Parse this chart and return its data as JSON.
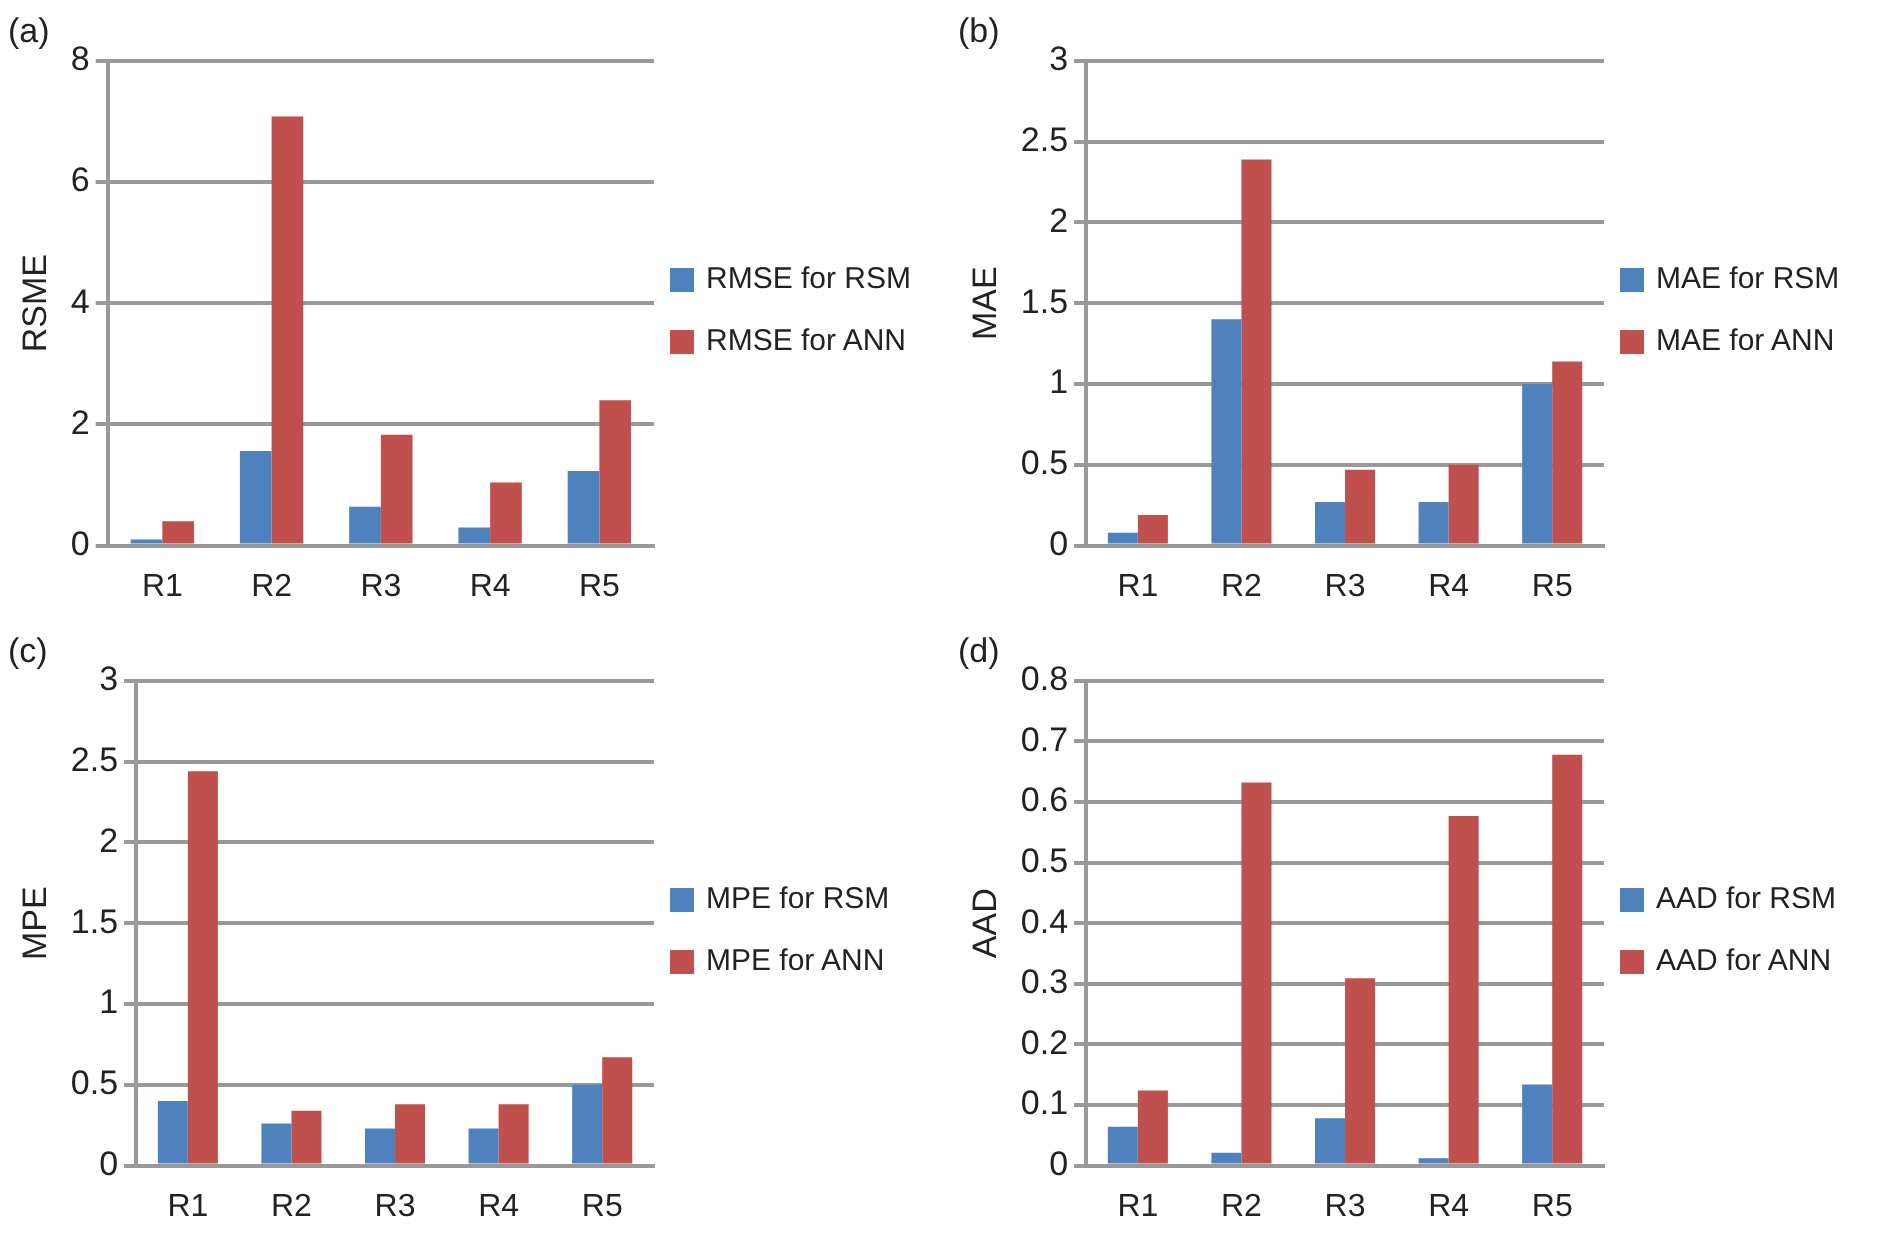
{
  "chart_data": [
    {
      "type": "bar",
      "title": "(a)",
      "ylabel": "RSME",
      "categories": [
        "R1",
        "R2",
        "R3",
        "R4",
        "R5"
      ],
      "series": [
        {
          "name": "RMSE for RSM",
          "color": "#4f81bd",
          "values": [
            0.1,
            1.56,
            0.64,
            0.3,
            1.23
          ]
        },
        {
          "name": "RMSE for ANN",
          "color": "#c0504d",
          "values": [
            0.4,
            7.08,
            1.83,
            1.04,
            2.4
          ]
        }
      ],
      "ylim": [
        0,
        8
      ],
      "yticks": [
        0,
        2,
        4,
        6,
        8
      ],
      "grid": "y",
      "legend": "right"
    },
    {
      "type": "bar",
      "title": "(b)",
      "ylabel": "MAE",
      "categories": [
        "R1",
        "R2",
        "R3",
        "R4",
        "R5"
      ],
      "series": [
        {
          "name": "MAE for RSM",
          "color": "#4f81bd",
          "values": [
            0.08,
            1.4,
            0.27,
            0.27,
            1.0
          ]
        },
        {
          "name": "MAE for ANN",
          "color": "#c0504d",
          "values": [
            0.19,
            2.39,
            0.47,
            0.5,
            1.14
          ]
        }
      ],
      "ylim": [
        0,
        3
      ],
      "yticks": [
        0,
        0.5,
        1,
        1.5,
        2,
        2.5,
        3
      ],
      "grid": "y",
      "legend": "right"
    },
    {
      "type": "bar",
      "title": "(c)",
      "ylabel": "MPE",
      "categories": [
        "R1",
        "R2",
        "R3",
        "R4",
        "R5"
      ],
      "series": [
        {
          "name": "MPE for RSM",
          "color": "#4f81bd",
          "values": [
            0.4,
            0.26,
            0.23,
            0.23,
            0.5
          ]
        },
        {
          "name": "MPE for ANN",
          "color": "#c0504d",
          "values": [
            2.44,
            0.34,
            0.38,
            0.38,
            0.67
          ]
        }
      ],
      "ylim": [
        0,
        3
      ],
      "yticks": [
        0,
        0.5,
        1,
        1.5,
        2,
        2.5,
        3
      ],
      "grid": "y",
      "legend": "right"
    },
    {
      "type": "bar",
      "title": "(d)",
      "ylabel": "AAD",
      "categories": [
        "R1",
        "R2",
        "R3",
        "R4",
        "R5"
      ],
      "series": [
        {
          "name": "AAD for RSM",
          "color": "#4f81bd",
          "values": [
            0.064,
            0.021,
            0.078,
            0.012,
            0.134
          ]
        },
        {
          "name": "AAD for ANN",
          "color": "#c0504d",
          "values": [
            0.124,
            0.632,
            0.309,
            0.577,
            0.678
          ]
        }
      ],
      "ylim": [
        0,
        0.8
      ],
      "yticks": [
        0,
        0.1,
        0.2,
        0.3,
        0.4,
        0.5,
        0.6,
        0.7,
        0.8
      ],
      "grid": "y",
      "legend": "right"
    }
  ]
}
